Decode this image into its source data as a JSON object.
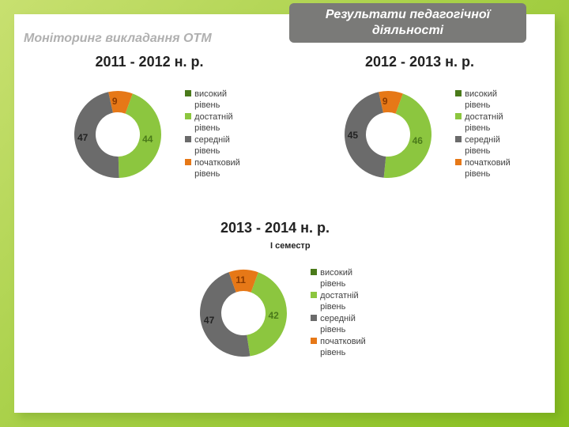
{
  "slide": {
    "subtitle": "Моніторинг викладання ОТМ",
    "tab_title": "Результати педагогічної діяльності",
    "background_gradient": [
      "#c8e070",
      "#a8d048",
      "#88c020"
    ],
    "inner_bg": "#ffffff"
  },
  "legend_labels": {
    "high": "високий рівень",
    "sufficient": "достатній рівень",
    "mid": "середній рівень",
    "initial": "початковий рівень"
  },
  "legend_colors": {
    "high": "#4a7a1a",
    "sufficient": "#8cc63f",
    "mid": "#6b6b6b",
    "initial": "#e67817"
  },
  "charts": {
    "c1": {
      "title": "2011 - 2012 н. р.",
      "type": "donut",
      "inner_radius": 28,
      "outer_radius": 55,
      "segments": [
        {
          "label": "44",
          "value": 44,
          "color": "#8cc63f",
          "text_color": "#4a7a1a"
        },
        {
          "label": "47",
          "value": 47,
          "color": "#6b6b6b",
          "text_color": "#222222"
        },
        {
          "label": "9",
          "value": 9,
          "color": "#e67817",
          "text_color": "#8a3a00"
        }
      ]
    },
    "c2": {
      "title": "2012 - 2013 н. р.",
      "type": "donut",
      "inner_radius": 28,
      "outer_radius": 55,
      "segments": [
        {
          "label": "46",
          "value": 46,
          "color": "#8cc63f",
          "text_color": "#4a7a1a"
        },
        {
          "label": "45",
          "value": 45,
          "color": "#6b6b6b",
          "text_color": "#222222"
        },
        {
          "label": "9",
          "value": 9,
          "color": "#e67817",
          "text_color": "#8a3a00"
        }
      ]
    },
    "c3": {
      "title": "2013 - 2014 н. р.",
      "subheader": "І семестр",
      "type": "donut",
      "inner_radius": 28,
      "outer_radius": 55,
      "segments": [
        {
          "label": "42",
          "value": 42,
          "color": "#8cc63f",
          "text_color": "#4a7a1a"
        },
        {
          "label": "47",
          "value": 47,
          "color": "#6b6b6b",
          "text_color": "#222222"
        },
        {
          "label": "11",
          "value": 11,
          "color": "#e67817",
          "text_color": "#8a3a00"
        }
      ]
    }
  }
}
